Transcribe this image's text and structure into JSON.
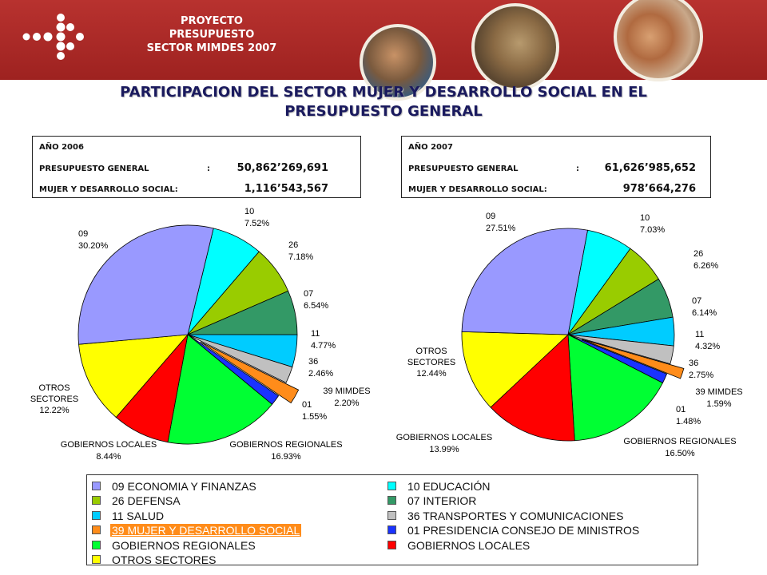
{
  "header": {
    "project_lines": [
      "PROYECTO",
      "PRESUPUESTO",
      "SECTOR MIMDES 2007"
    ]
  },
  "title_lines": [
    "PARTICIPACION DEL SECTOR MUJER Y DESARROLLO SOCIAL EN EL",
    "PRESUPUESTO GENERAL"
  ],
  "info_2006": {
    "year": "AÑO 2006",
    "general_label": "PRESUPUESTO GENERAL",
    "general_colon": ":",
    "general_value": "50,862’269,691",
    "mimdes_label": "MUJER Y DESARROLLO SOCIAL:",
    "mimdes_value": "1,116’543,567"
  },
  "info_2007": {
    "year": "AÑO 2007",
    "general_label": "PRESUPUESTO GENERAL",
    "general_colon": ":",
    "general_value": "61,626’985,652",
    "mimdes_label": "MUJER Y DESARROLLO SOCIAL:",
    "mimdes_value": "978’664,276"
  },
  "legend": [
    {
      "label": "09 ECONOMIA Y FINANZAS",
      "color": "#9999ff"
    },
    {
      "label": "10 EDUCACIÓN",
      "color": "#00ffff"
    },
    {
      "label": "26 DEFENSA",
      "color": "#99cc00"
    },
    {
      "label": "07 INTERIOR",
      "color": "#339966"
    },
    {
      "label": "11 SALUD",
      "color": "#00ccff"
    },
    {
      "label": "36 TRANSPORTES Y COMUNICACIONES",
      "color": "#c0c0c0"
    },
    {
      "label": "39 MUJER Y DESARROLLO SOCIAL",
      "color": "#ff8c1a",
      "highlight": true
    },
    {
      "label": "01 PRESIDENCIA CONSEJO DE MINISTROS",
      "color": "#1a33ff"
    },
    {
      "label": "GOBIERNOS REGIONALES",
      "color": "#00ff33"
    },
    {
      "label": "GOBIERNOS LOCALES",
      "color": "#ff0000"
    },
    {
      "label": "OTROS SECTORES",
      "color": "#ffff00"
    }
  ],
  "chart_data": [
    {
      "type": "pie",
      "title": "",
      "slices": [
        {
          "code": "10",
          "pct": "7.52%",
          "value": 7.52,
          "color": "#00ffff"
        },
        {
          "code": "26",
          "pct": "7.18%",
          "value": 7.18,
          "color": "#99cc00"
        },
        {
          "code": "07",
          "pct": "6.54%",
          "value": 6.54,
          "color": "#339966"
        },
        {
          "code": "11",
          "pct": "4.77%",
          "value": 4.77,
          "color": "#00ccff"
        },
        {
          "code": "36",
          "pct": "2.46%",
          "value": 2.46,
          "color": "#c0c0c0"
        },
        {
          "code": "39 MIMDES",
          "pct": "2.20%",
          "value": 2.2,
          "color": "#ff8c1a",
          "exploded": true
        },
        {
          "code": "01",
          "pct": "1.55%",
          "value": 1.55,
          "color": "#1a33ff"
        },
        {
          "code": "GOBIERNOS REGIONALES",
          "pct": "16.93%",
          "value": 16.93,
          "color": "#00ff33"
        },
        {
          "code": "GOBIERNOS LOCALES",
          "pct": "8.44%",
          "value": 8.44,
          "color": "#ff0000"
        },
        {
          "code": "OTROS SECTORES",
          "pct": "12.22%",
          "value": 12.22,
          "color": "#ffff00"
        },
        {
          "code": "09",
          "pct": "30.20%",
          "value": 30.2,
          "color": "#9999ff"
        }
      ]
    },
    {
      "type": "pie",
      "title": "",
      "slices": [
        {
          "code": "10",
          "pct": "7.03%",
          "value": 7.03,
          "color": "#00ffff"
        },
        {
          "code": "26",
          "pct": "6.26%",
          "value": 6.26,
          "color": "#99cc00"
        },
        {
          "code": "07",
          "pct": "6.14%",
          "value": 6.14,
          "color": "#339966"
        },
        {
          "code": "11",
          "pct": "4.32%",
          "value": 4.32,
          "color": "#00ccff"
        },
        {
          "code": "36",
          "pct": "2.75%",
          "value": 2.75,
          "color": "#c0c0c0"
        },
        {
          "code": "39 MIMDES",
          "pct": "1.59%",
          "value": 1.59,
          "color": "#ff8c1a",
          "exploded": true
        },
        {
          "code": "01",
          "pct": "1.48%",
          "value": 1.48,
          "color": "#1a33ff"
        },
        {
          "code": "GOBIERNOS REGIONALES",
          "pct": "16.50%",
          "value": 16.5,
          "color": "#00ff33"
        },
        {
          "code": "GOBIERNOS LOCALES",
          "pct": "13.99%",
          "value": 13.99,
          "color": "#ff0000"
        },
        {
          "code": "OTROS SECTORES",
          "pct": "12.44%",
          "value": 12.44,
          "color": "#ffff00"
        },
        {
          "code": "09",
          "pct": "27.51%",
          "value": 27.51,
          "color": "#9999ff"
        }
      ]
    }
  ]
}
